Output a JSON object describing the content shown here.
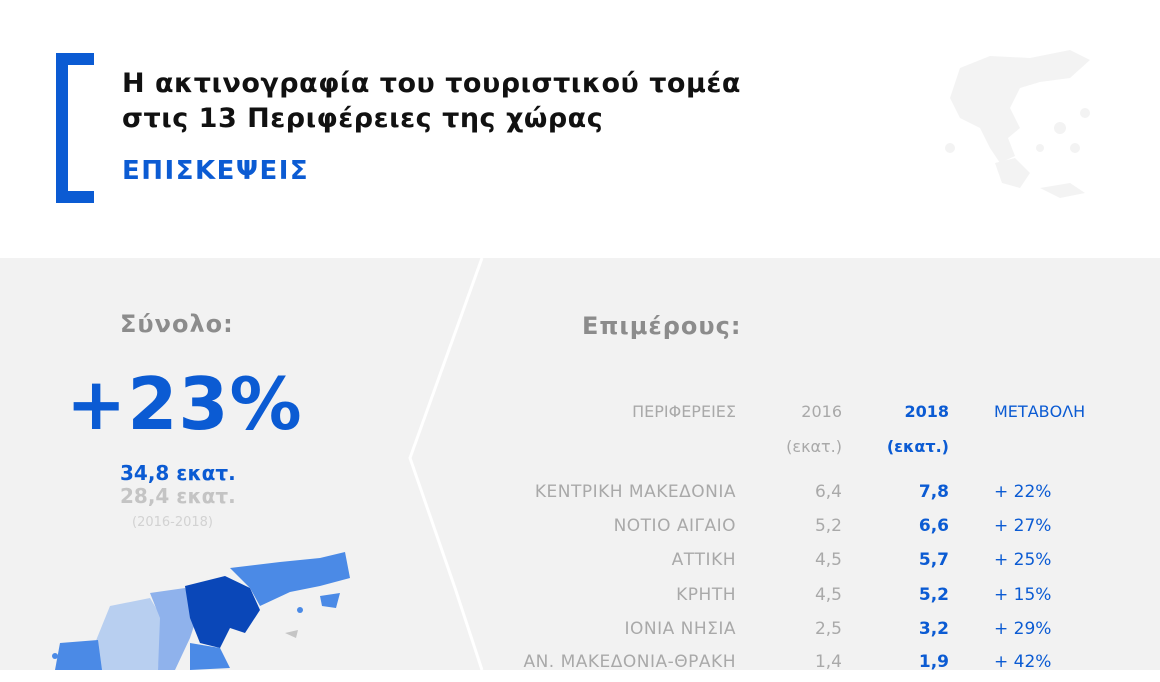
{
  "header": {
    "title_line1": "Η ακτινογραφία του τουριστικού τομέα",
    "title_line2": "στις 13 Περιφέρειες της χώρας",
    "subtitle": "ΕΠΙΣΚΕΨΕΙΣ"
  },
  "summary": {
    "label": "Σύνολο:",
    "change": "+23%",
    "value_2018": "34,8 εκατ.",
    "value_2016": "28,4 εκατ.",
    "period": "(2016-2018)"
  },
  "detail": {
    "label": "Επιμέρους:",
    "headers": {
      "region": "ΠΕΡΙΦΕΡΕΙΕΣ",
      "y2016": "2016",
      "y2016_unit": "(εκατ.)",
      "y2018": "2018",
      "y2018_unit": "(εκατ.)",
      "change": "ΜΕΤΑΒΟΛΗ"
    },
    "rows": [
      {
        "region": "ΚΕΝΤΡΙΚΗ ΜΑΚΕΔΟΝΙΑ",
        "y2016": "6,4",
        "y2018": "7,8",
        "change": "+ 22%"
      },
      {
        "region": "ΝΟΤΙΟ ΑΙΓΑΙΟ",
        "y2016": "5,2",
        "y2018": "6,6",
        "change": "+ 27%"
      },
      {
        "region": "ΑΤΤΙΚΗ",
        "y2016": "4,5",
        "y2018": "5,7",
        "change": "+ 25%"
      },
      {
        "region": "ΚΡΗΤΗ",
        "y2016": "4,5",
        "y2018": "5,2",
        "change": "+ 15%"
      },
      {
        "region": "ΙΟΝΙΑ ΝΗΣΙΑ",
        "y2016": "2,5",
        "y2018": "3,2",
        "change": "+ 29%"
      },
      {
        "region": "ΑΝ. ΜΑΚΕΔΟΝΙΑ-ΘΡΑΚΗ",
        "y2016": "1,4",
        "y2018": "1,9",
        "change": "+ 42%"
      }
    ]
  },
  "colors": {
    "accent": "#0b5bd3",
    "dark_blue": "#0a47b8",
    "mid_blue": "#4b8ae6",
    "light_blue": "#b8cff0",
    "muted_text": "#a9a9a9",
    "panel_bg": "#f2f2f2"
  },
  "icons": {
    "background_map": "greece-map-silhouette",
    "region_map": "northern-greece-region-map"
  }
}
